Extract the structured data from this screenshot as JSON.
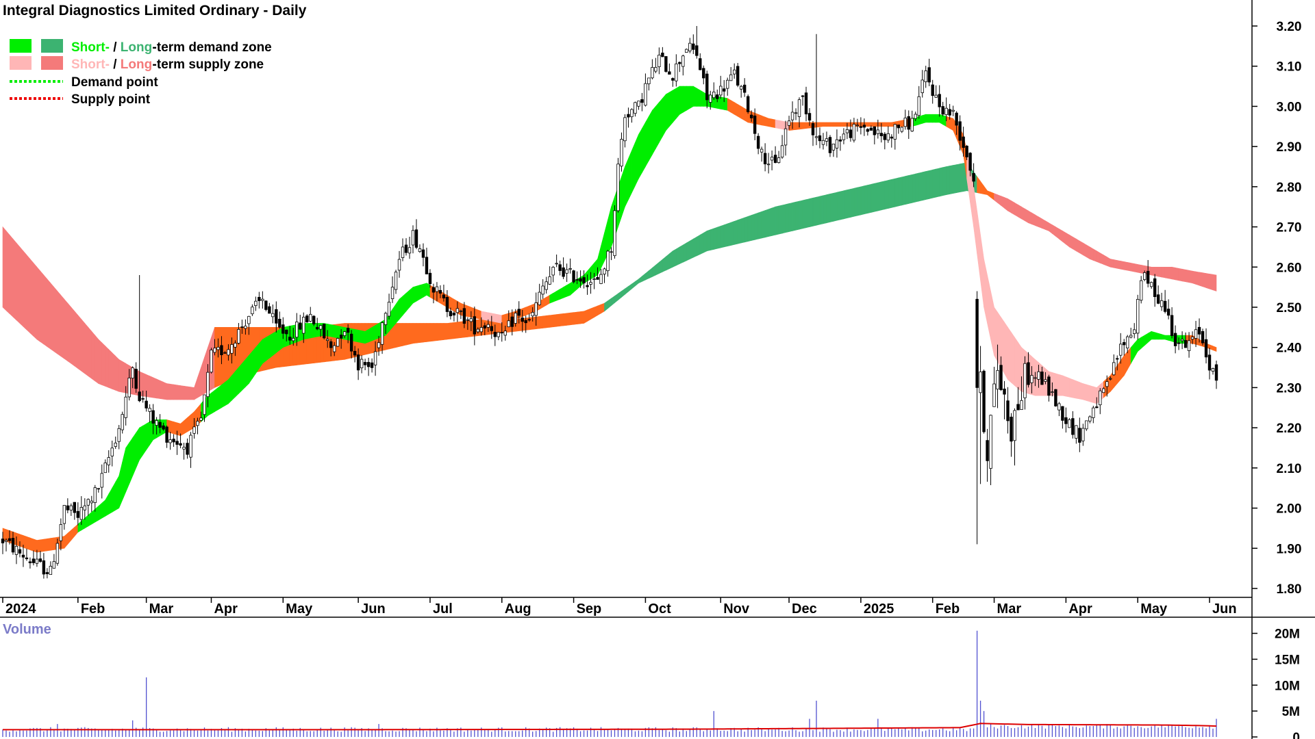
{
  "title": "Integral Diagnostics Limited Ordinary - Daily",
  "colors": {
    "short_demand": "#00ee00",
    "long_demand": "#3cb371",
    "short_supply": "#ffb6b6",
    "long_supply": "#f47a7a",
    "overlap": "#ff6a1e",
    "candle": "#000000",
    "volume_bar": "#5050d0",
    "volume_avg": "#dd0000"
  },
  "legend": {
    "row1": {
      "short": "Short-",
      "sep": " / ",
      "long": "Long-",
      "rest": "-term demand zone"
    },
    "row2": {
      "short": "Short-",
      "sep": " / ",
      "long": "Long-",
      "rest": "-term supply zone"
    },
    "row3": {
      "label": "Demand point"
    },
    "row4": {
      "label": "Supply point"
    }
  },
  "chart_data": [
    {
      "type": "candlestick",
      "title": "Integral Diagnostics Limited Ordinary - Daily",
      "y_ticks": [
        "3.20",
        "3.10",
        "3.00",
        "2.90",
        "2.80",
        "2.70",
        "2.60",
        "2.50",
        "2.40",
        "2.30",
        "2.20",
        "2.10",
        "2.00",
        "1.90",
        "1.80"
      ],
      "ylim": [
        1.77,
        3.26
      ],
      "x_ticks": [
        "2024",
        "Feb",
        "Mar",
        "Apr",
        "May",
        "Jun",
        "Jul",
        "Aug",
        "Sep",
        "Oct",
        "Nov",
        "Dec",
        "2025",
        "Feb",
        "Mar",
        "Apr",
        "May",
        "Jun"
      ],
      "x_tick_index": [
        0,
        22,
        42,
        61,
        82,
        104,
        125,
        146,
        167,
        188,
        210,
        230,
        251,
        272,
        290,
        311,
        332,
        353
      ],
      "price_anchors": [
        [
          0,
          1.92
        ],
        [
          8,
          1.87
        ],
        [
          14,
          1.84
        ],
        [
          18,
          2.0
        ],
        [
          22,
          1.98
        ],
        [
          28,
          2.05
        ],
        [
          34,
          2.2
        ],
        [
          38,
          2.35
        ],
        [
          40,
          2.28
        ],
        [
          44,
          2.22
        ],
        [
          48,
          2.18
        ],
        [
          54,
          2.15
        ],
        [
          58,
          2.22
        ],
        [
          61,
          2.38
        ],
        [
          66,
          2.4
        ],
        [
          72,
          2.48
        ],
        [
          76,
          2.52
        ],
        [
          80,
          2.45
        ],
        [
          84,
          2.43
        ],
        [
          90,
          2.48
        ],
        [
          96,
          2.4
        ],
        [
          100,
          2.45
        ],
        [
          104,
          2.36
        ],
        [
          108,
          2.35
        ],
        [
          112,
          2.5
        ],
        [
          116,
          2.62
        ],
        [
          120,
          2.68
        ],
        [
          122,
          2.65
        ],
        [
          126,
          2.55
        ],
        [
          130,
          2.5
        ],
        [
          134,
          2.48
        ],
        [
          138,
          2.45
        ],
        [
          142,
          2.46
        ],
        [
          146,
          2.42
        ],
        [
          150,
          2.48
        ],
        [
          154,
          2.46
        ],
        [
          158,
          2.55
        ],
        [
          162,
          2.6
        ],
        [
          166,
          2.58
        ],
        [
          170,
          2.57
        ],
        [
          174,
          2.56
        ],
        [
          178,
          2.65
        ],
        [
          180,
          2.85
        ],
        [
          182,
          2.98
        ],
        [
          186,
          3.0
        ],
        [
          188,
          3.05
        ],
        [
          192,
          3.12
        ],
        [
          196,
          3.08
        ],
        [
          200,
          3.15
        ],
        [
          203,
          3.13
        ],
        [
          206,
          3.02
        ],
        [
          210,
          3.04
        ],
        [
          214,
          3.08
        ],
        [
          218,
          3.0
        ],
        [
          222,
          2.88
        ],
        [
          226,
          2.85
        ],
        [
          230,
          2.97
        ],
        [
          234,
          3.02
        ],
        [
          238,
          2.92
        ],
        [
          242,
          2.9
        ],
        [
          246,
          2.93
        ],
        [
          252,
          2.95
        ],
        [
          258,
          2.92
        ],
        [
          262,
          2.95
        ],
        [
          266,
          2.96
        ],
        [
          270,
          3.08
        ],
        [
          274,
          3.0
        ],
        [
          278,
          2.98
        ],
        [
          282,
          2.88
        ],
        [
          284,
          2.82
        ],
        [
          286,
          2.3
        ],
        [
          288,
          2.15
        ],
        [
          291,
          2.35
        ],
        [
          295,
          2.2
        ],
        [
          299,
          2.32
        ],
        [
          303,
          2.33
        ],
        [
          307,
          2.28
        ],
        [
          311,
          2.22
        ],
        [
          315,
          2.18
        ],
        [
          319,
          2.25
        ],
        [
          323,
          2.3
        ],
        [
          327,
          2.4
        ],
        [
          331,
          2.45
        ],
        [
          333,
          2.58
        ],
        [
          336,
          2.55
        ],
        [
          340,
          2.5
        ],
        [
          343,
          2.42
        ],
        [
          346,
          2.4
        ],
        [
          350,
          2.44
        ],
        [
          353,
          2.36
        ],
        [
          355,
          2.31
        ]
      ],
      "zones": {
        "short_band": [
          [
            0,
            1.95,
            1.92
          ],
          [
            10,
            1.92,
            1.89
          ],
          [
            18,
            1.93,
            1.9
          ],
          [
            22,
            1.96,
            1.94
          ],
          [
            30,
            2.02,
            1.98
          ],
          [
            34,
            2.08,
            2.0
          ],
          [
            36,
            2.15,
            2.04
          ],
          [
            40,
            2.2,
            2.12
          ],
          [
            44,
            2.22,
            2.17
          ],
          [
            48,
            2.22,
            2.19
          ],
          [
            52,
            2.21,
            2.18
          ],
          [
            56,
            2.24,
            2.2
          ],
          [
            60,
            2.28,
            2.23
          ],
          [
            66,
            2.32,
            2.26
          ],
          [
            72,
            2.38,
            2.31
          ],
          [
            76,
            2.42,
            2.36
          ],
          [
            82,
            2.45,
            2.4
          ],
          [
            88,
            2.46,
            2.42
          ],
          [
            94,
            2.46,
            2.43
          ],
          [
            100,
            2.45,
            2.42
          ],
          [
            106,
            2.44,
            2.41
          ],
          [
            112,
            2.47,
            2.43
          ],
          [
            116,
            2.52,
            2.47
          ],
          [
            120,
            2.55,
            2.51
          ],
          [
            124,
            2.56,
            2.53
          ],
          [
            128,
            2.54,
            2.51
          ],
          [
            134,
            2.51,
            2.48
          ],
          [
            140,
            2.49,
            2.47
          ],
          [
            146,
            2.48,
            2.46
          ],
          [
            150,
            2.49,
            2.47
          ],
          [
            156,
            2.51,
            2.49
          ],
          [
            160,
            2.53,
            2.51
          ],
          [
            166,
            2.56,
            2.53
          ],
          [
            170,
            2.58,
            2.56
          ],
          [
            174,
            2.62,
            2.58
          ],
          [
            178,
            2.75,
            2.65
          ],
          [
            182,
            2.85,
            2.75
          ],
          [
            186,
            2.93,
            2.82
          ],
          [
            190,
            2.99,
            2.88
          ],
          [
            194,
            3.03,
            2.94
          ],
          [
            198,
            3.05,
            2.98
          ],
          [
            202,
            3.05,
            3.0
          ],
          [
            206,
            3.03,
            3.0
          ],
          [
            212,
            3.02,
            2.99
          ],
          [
            218,
            2.99,
            2.96
          ],
          [
            224,
            2.97,
            2.95
          ],
          [
            230,
            2.96,
            2.94
          ],
          [
            240,
            2.96,
            2.95
          ],
          [
            250,
            2.96,
            2.95
          ],
          [
            260,
            2.96,
            2.95
          ],
          [
            266,
            2.97,
            2.95
          ],
          [
            270,
            2.98,
            2.96
          ],
          [
            274,
            2.98,
            2.96
          ],
          [
            278,
            2.97,
            2.94
          ],
          [
            281,
            2.93,
            2.88
          ],
          [
            284,
            2.8,
            2.7
          ],
          [
            287,
            2.62,
            2.5
          ],
          [
            290,
            2.5,
            2.38
          ],
          [
            294,
            2.45,
            2.32
          ],
          [
            298,
            2.4,
            2.29
          ],
          [
            302,
            2.37,
            2.28
          ],
          [
            306,
            2.34,
            2.28
          ],
          [
            310,
            2.33,
            2.28
          ],
          [
            316,
            2.31,
            2.27
          ],
          [
            320,
            2.3,
            2.26
          ],
          [
            324,
            2.33,
            2.29
          ],
          [
            328,
            2.38,
            2.33
          ],
          [
            332,
            2.42,
            2.39
          ],
          [
            336,
            2.44,
            2.42
          ],
          [
            340,
            2.43,
            2.42
          ],
          [
            344,
            2.43,
            2.41
          ],
          [
            348,
            2.43,
            2.41
          ],
          [
            352,
            2.41,
            2.4
          ],
          [
            355,
            2.4,
            2.39
          ]
        ],
        "long_band": [
          [
            0,
            2.7,
            2.5
          ],
          [
            10,
            2.6,
            2.42
          ],
          [
            20,
            2.5,
            2.36
          ],
          [
            28,
            2.42,
            2.31
          ],
          [
            34,
            2.37,
            2.29
          ],
          [
            40,
            2.34,
            2.28
          ],
          [
            48,
            2.31,
            2.27
          ],
          [
            56,
            2.3,
            2.27
          ],
          [
            62,
            2.45,
            2.3
          ],
          [
            70,
            2.45,
            2.33
          ],
          [
            80,
            2.45,
            2.35
          ],
          [
            90,
            2.45,
            2.36
          ],
          [
            100,
            2.46,
            2.37
          ],
          [
            110,
            2.46,
            2.39
          ],
          [
            120,
            2.46,
            2.41
          ],
          [
            130,
            2.46,
            2.42
          ],
          [
            140,
            2.47,
            2.43
          ],
          [
            150,
            2.47,
            2.44
          ],
          [
            160,
            2.48,
            2.45
          ],
          [
            170,
            2.49,
            2.46
          ],
          [
            176,
            2.51,
            2.49
          ],
          [
            186,
            2.57,
            2.56
          ],
          [
            196,
            2.64,
            2.6
          ],
          [
            206,
            2.69,
            2.64
          ],
          [
            216,
            2.72,
            2.66
          ],
          [
            226,
            2.75,
            2.68
          ],
          [
            236,
            2.77,
            2.7
          ],
          [
            246,
            2.79,
            2.72
          ],
          [
            256,
            2.81,
            2.74
          ],
          [
            266,
            2.83,
            2.76
          ],
          [
            276,
            2.85,
            2.78
          ],
          [
            282,
            2.86,
            2.79
          ],
          [
            288,
            2.79,
            2.78
          ],
          [
            294,
            2.77,
            2.74
          ],
          [
            300,
            2.74,
            2.71
          ],
          [
            306,
            2.71,
            2.69
          ],
          [
            312,
            2.68,
            2.65
          ],
          [
            318,
            2.65,
            2.62
          ],
          [
            324,
            2.62,
            2.6
          ],
          [
            330,
            2.61,
            2.59
          ],
          [
            336,
            2.6,
            2.58
          ],
          [
            342,
            2.6,
            2.57
          ],
          [
            348,
            2.59,
            2.56
          ],
          [
            355,
            2.58,
            2.54
          ]
        ]
      }
    },
    {
      "type": "bar",
      "title": "Volume",
      "y_ticks": [
        "20M",
        "15M",
        "10M",
        "5M",
        "0"
      ],
      "ylim": [
        0,
        21000000
      ],
      "spikes": [
        [
          42,
          11500000
        ],
        [
          38,
          3200000
        ],
        [
          16,
          2500000
        ],
        [
          208,
          5000000
        ],
        [
          238,
          7000000
        ],
        [
          236,
          3500000
        ],
        [
          285,
          20500000
        ],
        [
          286,
          7000000
        ],
        [
          287,
          5000000
        ],
        [
          355,
          3500000
        ],
        [
          110,
          2500000
        ],
        [
          256,
          3500000
        ]
      ],
      "avg_points": [
        [
          0,
          1400000
        ],
        [
          100,
          1400000
        ],
        [
          200,
          1500000
        ],
        [
          280,
          1800000
        ],
        [
          286,
          2600000
        ],
        [
          300,
          2400000
        ],
        [
          340,
          2300000
        ],
        [
          350,
          2200000
        ],
        [
          355,
          2100000
        ]
      ]
    }
  ]
}
